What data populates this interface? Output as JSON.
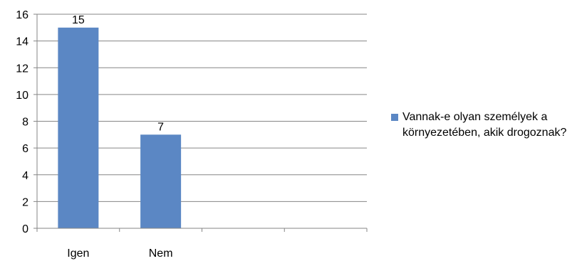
{
  "chart_data": {
    "type": "bar",
    "categories": [
      "Igen",
      "Nem",
      "",
      ""
    ],
    "series": [
      {
        "name": "Vannak-e olyan személyek a környezetében, akik drogoznak?",
        "values": [
          15,
          7,
          null,
          null
        ],
        "color": "#5b87c4"
      }
    ],
    "data_labels": [
      "15",
      "7"
    ],
    "ylim": [
      0,
      16
    ],
    "yticks": [
      0,
      2,
      4,
      6,
      8,
      10,
      12,
      14,
      16
    ],
    "grid": true,
    "legend_position": "right"
  }
}
